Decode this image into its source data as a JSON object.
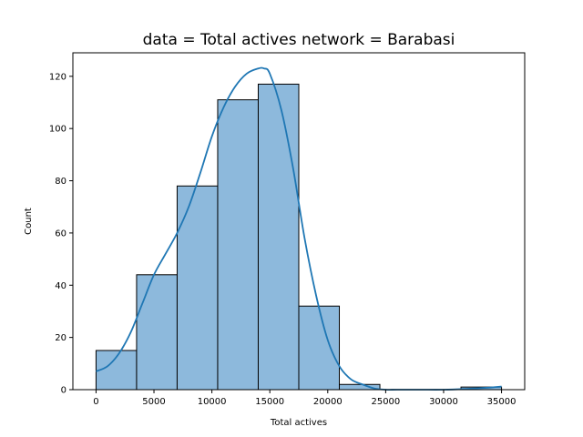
{
  "chart_data": {
    "type": "bar",
    "title": "data = Total actives network = Barabasi",
    "xlabel": "Total actives",
    "ylabel": "Count",
    "xlim": [
      -2000,
      37000
    ],
    "ylim": [
      0,
      129
    ],
    "xticks": [
      0,
      5000,
      10000,
      15000,
      20000,
      25000,
      30000,
      35000
    ],
    "yticks": [
      0,
      20,
      40,
      60,
      80,
      100,
      120
    ],
    "bins": [
      {
        "x0": 0,
        "x1": 3500,
        "count": 15
      },
      {
        "x0": 3500,
        "x1": 7000,
        "count": 44
      },
      {
        "x0": 7000,
        "x1": 10500,
        "count": 78
      },
      {
        "x0": 10500,
        "x1": 14000,
        "count": 111
      },
      {
        "x0": 14000,
        "x1": 17500,
        "count": 117
      },
      {
        "x0": 17500,
        "x1": 21000,
        "count": 32
      },
      {
        "x0": 21000,
        "x1": 24500,
        "count": 2
      },
      {
        "x0": 24500,
        "x1": 28000,
        "count": 0
      },
      {
        "x0": 28000,
        "x1": 31500,
        "count": 0
      },
      {
        "x0": 31500,
        "x1": 35000,
        "count": 1
      }
    ],
    "kde": {
      "x": [
        0,
        1000,
        2000,
        3000,
        4000,
        5000,
        6000,
        7000,
        8000,
        9000,
        10000,
        11000,
        12000,
        13000,
        14000,
        14500,
        15000,
        16000,
        17000,
        18000,
        19000,
        20000,
        21000,
        22000,
        23000,
        24000,
        25000,
        26000,
        28000,
        30000,
        32000,
        34000,
        35000
      ],
      "y": [
        7,
        9,
        14,
        22,
        33,
        44,
        52,
        60,
        70,
        83,
        97,
        108,
        116,
        121,
        123,
        123,
        121,
        107,
        85,
        58,
        36,
        19,
        9,
        4,
        2,
        0.5,
        0,
        0,
        0,
        0,
        0.3,
        0.8,
        1.2
      ]
    },
    "bar_fill": "#8db9dc",
    "bar_edge": "#000000",
    "line_color": "#1f77b4",
    "grid": false
  }
}
